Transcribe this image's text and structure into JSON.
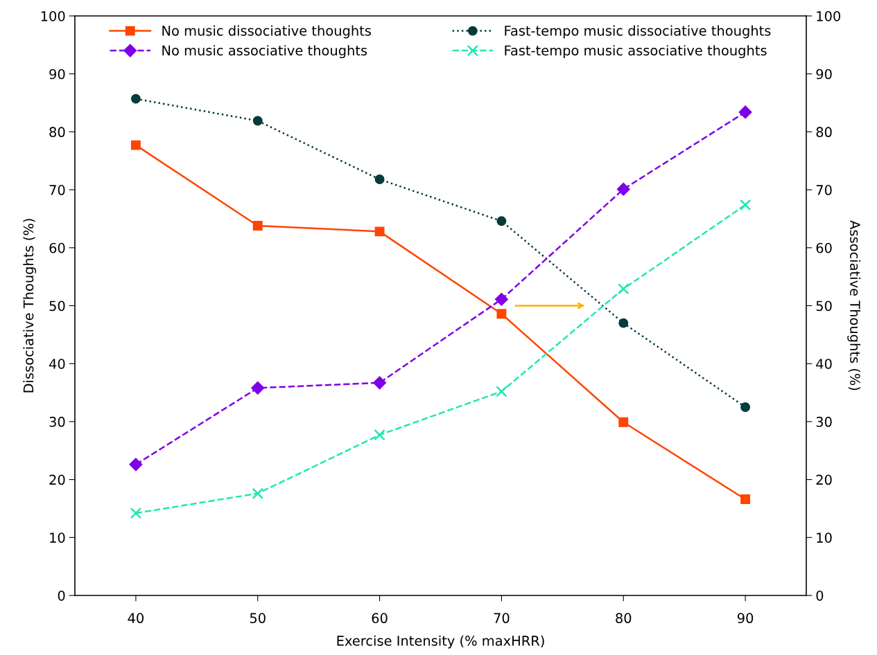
{
  "chart_data": {
    "type": "line",
    "xlabel": "Exercise Intensity (% maxHRR)",
    "ylabel": "Dissociative Thoughts (%)",
    "y2label": "Associative Thoughts (%)",
    "x": [
      40,
      50,
      60,
      70,
      80,
      90
    ],
    "series": [
      {
        "name": "No music dissociative thoughts",
        "color": "#ff4500",
        "values": [
          77.7,
          63.8,
          62.8,
          48.6,
          29.9,
          16.6
        ],
        "marker": "square",
        "line_style": "solid"
      },
      {
        "name": "No music associative thoughts",
        "color": "#7f00e6",
        "values": [
          22.6,
          35.8,
          36.7,
          51.1,
          70.1,
          83.4
        ],
        "marker": "diamond",
        "line_style": "dashed",
        "axis": "y2"
      },
      {
        "name": "Fast-tempo music dissociative thoughts",
        "color": "#053b3b",
        "values": [
          85.7,
          81.9,
          71.8,
          64.6,
          47.0,
          32.5
        ],
        "marker": "circle",
        "line_style": "dotted"
      },
      {
        "name": "Fast-tempo music associative thoughts",
        "color": "#1ee8b4",
        "values": [
          14.2,
          17.6,
          27.7,
          35.2,
          52.9,
          67.4
        ],
        "marker": "cross",
        "line_style": "dashed",
        "axis": "y2"
      }
    ],
    "xlim": [
      35,
      95
    ],
    "xticks": [
      40,
      50,
      60,
      70,
      80,
      90
    ],
    "ylim": [
      0,
      100
    ],
    "yticks": [
      0,
      10,
      20,
      30,
      40,
      50,
      60,
      70,
      80,
      90,
      100
    ],
    "y2lim": [
      0,
      100
    ],
    "y2ticks": [
      0,
      10,
      20,
      30,
      40,
      50,
      60,
      70,
      80,
      90,
      100
    ],
    "legend": "top",
    "grid": false
  }
}
